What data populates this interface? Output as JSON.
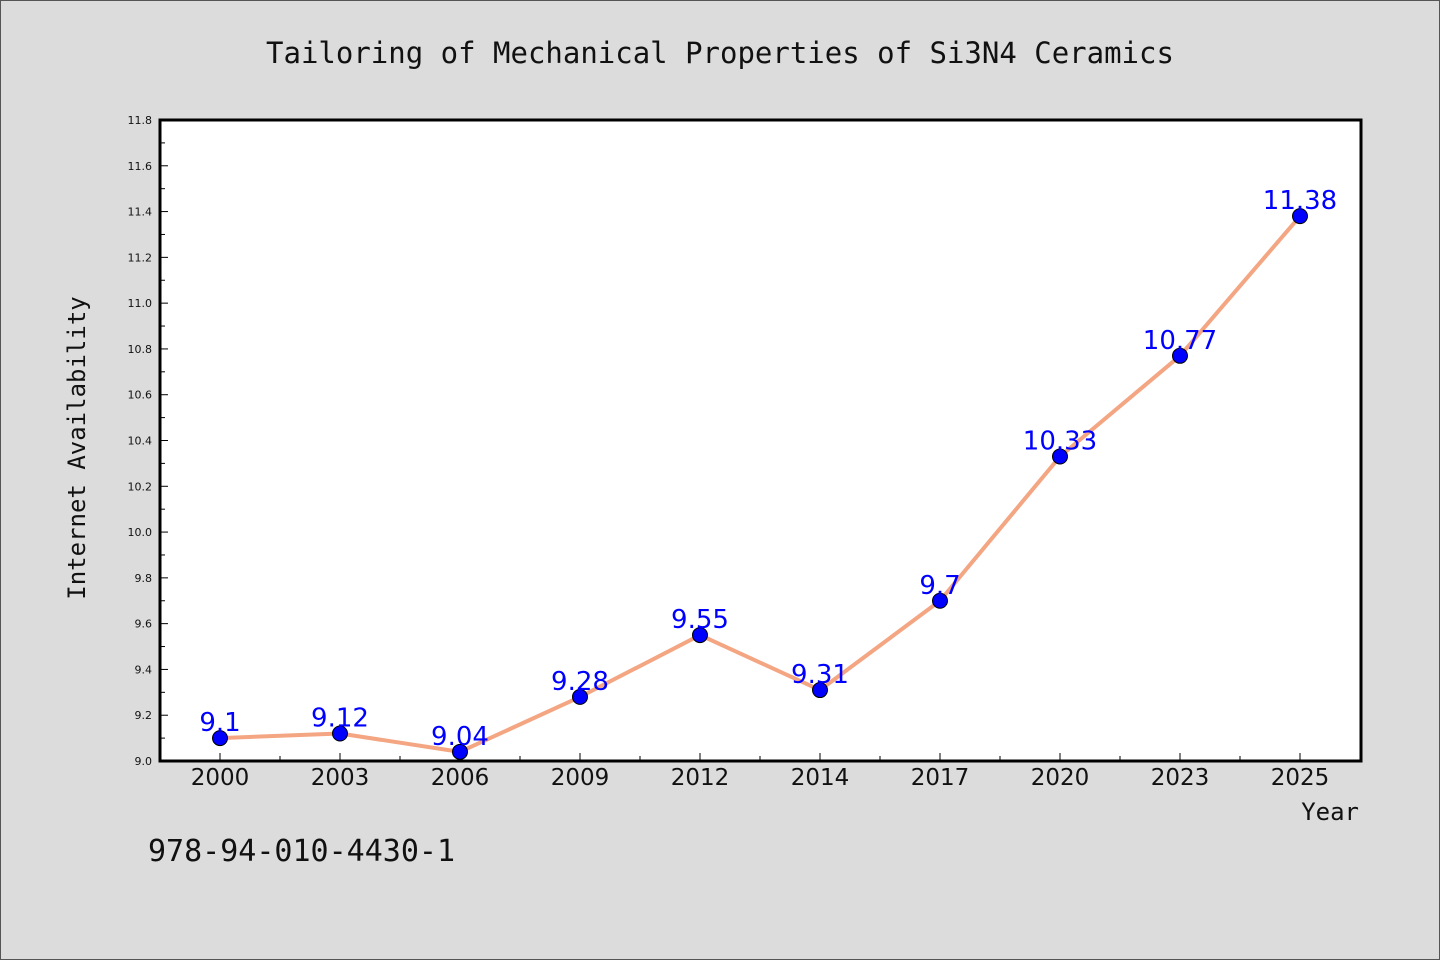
{
  "chart_data": {
    "type": "line",
    "title": "Tailoring of Mechanical Properties of Si3N4 Ceramics",
    "xlabel": "Year",
    "ylabel": "Internet Availability",
    "categories": [
      "2000",
      "2003",
      "2006",
      "2009",
      "2012",
      "2014",
      "2017",
      "2020",
      "2023",
      "2025"
    ],
    "series": [
      {
        "values": [
          9.1,
          9.12,
          9.04,
          9.28,
          9.55,
          9.31,
          9.7,
          10.33,
          10.77,
          11.38
        ],
        "labels": [
          "9.1",
          "9.12",
          "9.04",
          "9.28",
          "9.55",
          "9.31",
          "9.7",
          "10.33",
          "10.77",
          "11.38"
        ]
      }
    ],
    "ylim": [
      9.0,
      11.8
    ],
    "yticks": [
      "9.0",
      "9.2",
      "9.4",
      "9.6",
      "9.8",
      "10.0",
      "10.2",
      "10.4",
      "10.6",
      "10.8",
      "11.0",
      "11.2",
      "11.4",
      "11.6",
      "11.8"
    ],
    "grid": false,
    "legend": "none",
    "colors": {
      "line": "#f4a582",
      "marker": "#0000ff",
      "data_label": "#0000ff",
      "background": "#dcdcdc",
      "plot_background": "#ffffff"
    }
  },
  "footer": {
    "isbn": "978-94-010-4430-1"
  }
}
